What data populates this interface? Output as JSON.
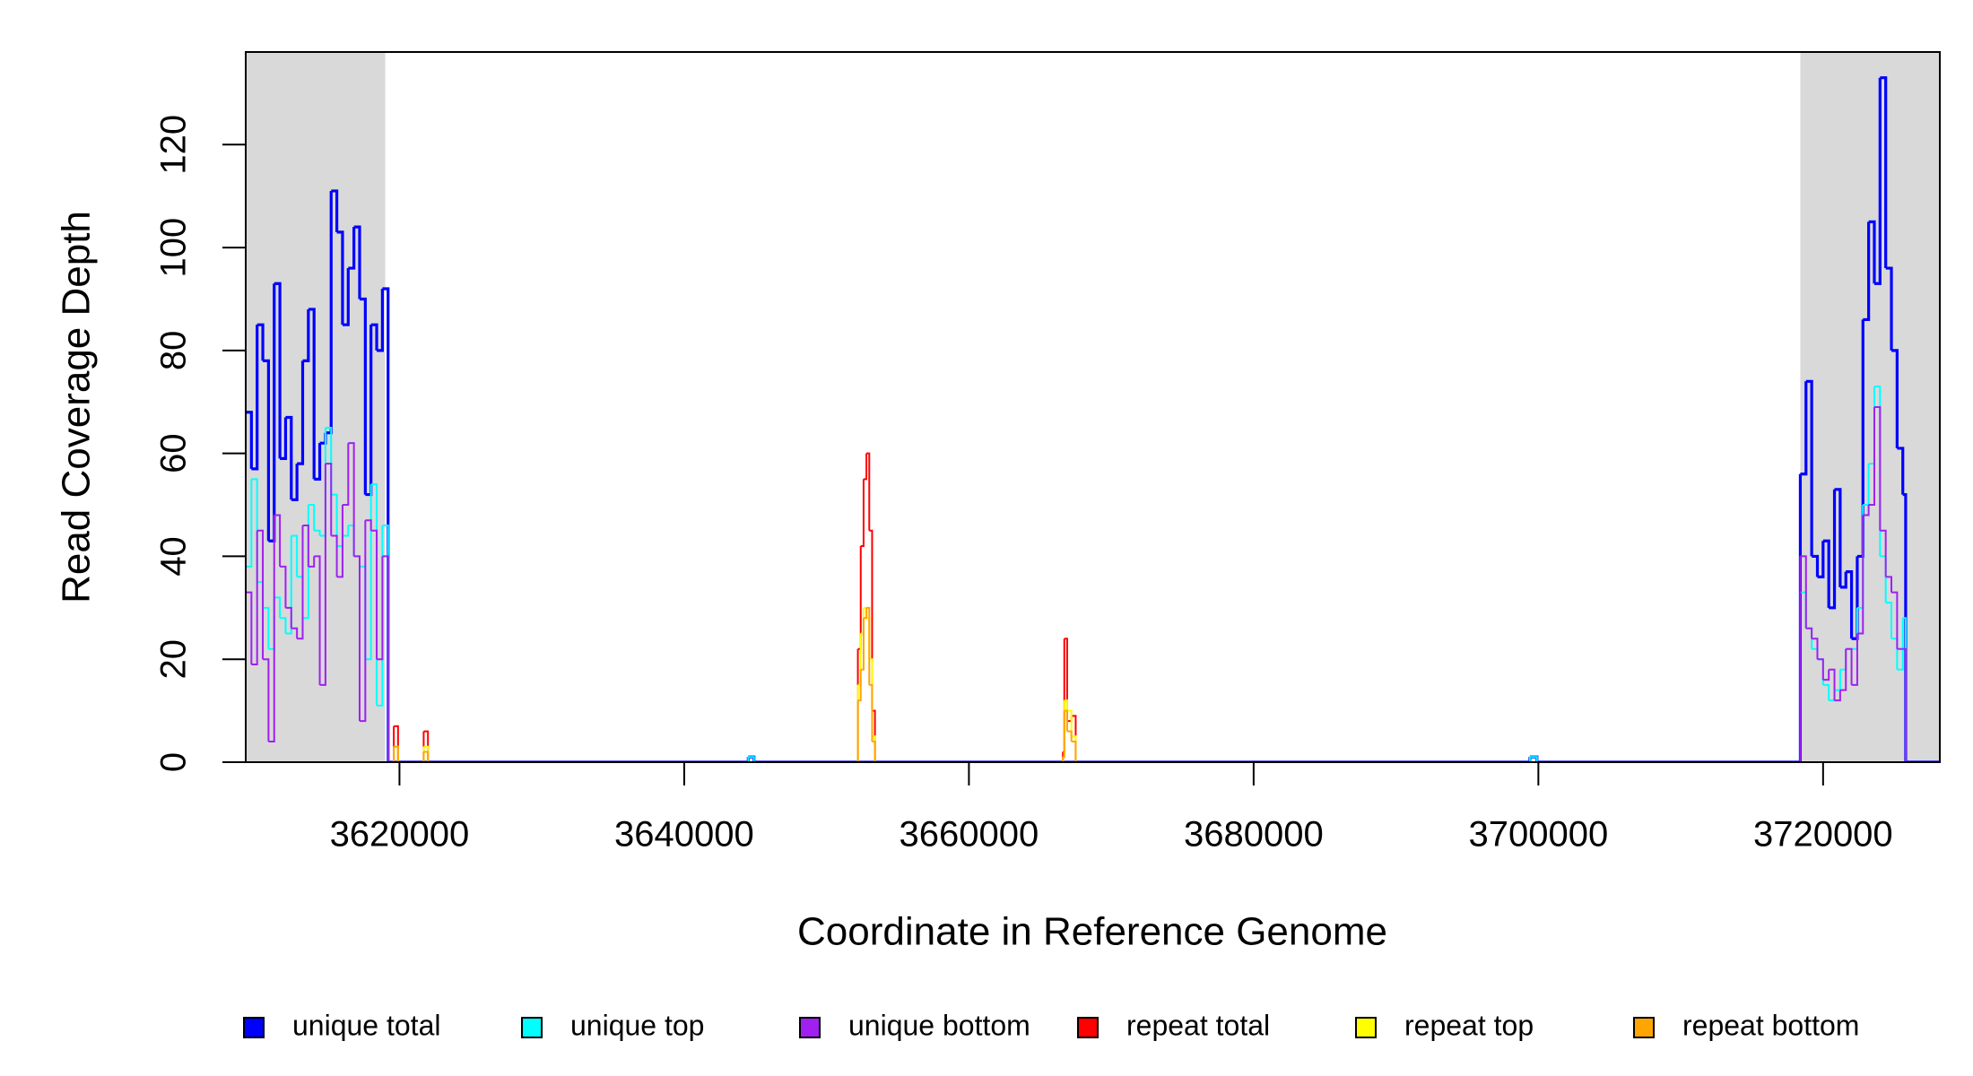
{
  "chart_data": {
    "type": "step",
    "x_label": "Coordinate in Reference Genome",
    "y_label": "Read Coverage Depth",
    "x": [
      3609200,
      3609600,
      3610000,
      3610400,
      3610800,
      3611200,
      3611600,
      3612000,
      3612400,
      3612800,
      3613200,
      3613600,
      3614000,
      3614400,
      3614800,
      3615200,
      3615600,
      3616000,
      3616400,
      3616800,
      3617200,
      3617600,
      3618000,
      3618400,
      3618800,
      3619200,
      3619400,
      3619600,
      3619900,
      3621700,
      3622000,
      3644500,
      3644900,
      3652200,
      3652400,
      3652600,
      3652800,
      3653000,
      3653200,
      3653400,
      3666600,
      3666700,
      3666900,
      3667200,
      3667500,
      3699400,
      3699900,
      3718400,
      3718800,
      3719200,
      3719600,
      3720000,
      3720400,
      3720800,
      3721200,
      3721600,
      3722000,
      3722400,
      3722800,
      3723200,
      3723600,
      3724000,
      3724400,
      3724800,
      3725200,
      3725600,
      3725800,
      3728200
    ],
    "series": [
      {
        "name": "unique total",
        "color": "#0000ff",
        "values": [
          68,
          57,
          85,
          78,
          43,
          93,
          59,
          67,
          51,
          58,
          78,
          88,
          55,
          62,
          64,
          111,
          103,
          85,
          96,
          104,
          90,
          52,
          85,
          80,
          92,
          0,
          0,
          0,
          0,
          0,
          0,
          1,
          0,
          0,
          0,
          0,
          0,
          0,
          0,
          0,
          0,
          0,
          0,
          0,
          0,
          1,
          0,
          56,
          74,
          40,
          36,
          43,
          30,
          53,
          34,
          37,
          24,
          40,
          86,
          105,
          93,
          133,
          96,
          80,
          61,
          52,
          0,
          0
        ]
      },
      {
        "name": "unique top",
        "color": "#00ffff",
        "values": [
          38,
          55,
          35,
          30,
          22,
          32,
          28,
          25,
          44,
          36,
          28,
          50,
          45,
          44,
          65,
          52,
          42,
          44,
          46,
          40,
          38,
          20,
          54,
          11,
          46,
          0,
          0,
          0,
          0,
          0,
          0,
          1,
          0,
          0,
          0,
          0,
          0,
          0,
          0,
          0,
          0,
          0,
          0,
          0,
          0,
          1,
          0,
          33,
          26,
          22,
          20,
          15,
          12,
          14,
          18,
          22,
          22,
          30,
          50,
          58,
          73,
          40,
          31,
          24,
          18,
          28,
          0,
          0
        ]
      },
      {
        "name": "unique bottom",
        "color": "#a020f0",
        "values": [
          33,
          19,
          45,
          20,
          4,
          48,
          38,
          30,
          26,
          24,
          46,
          38,
          40,
          15,
          58,
          44,
          36,
          50,
          62,
          40,
          8,
          47,
          45,
          20,
          40,
          0,
          0,
          0,
          0,
          0,
          0,
          0,
          0,
          0,
          0,
          0,
          0,
          0,
          0,
          0,
          0,
          0,
          0,
          0,
          0,
          0,
          0,
          40,
          26,
          24,
          20,
          16,
          18,
          12,
          14,
          22,
          15,
          25,
          48,
          50,
          69,
          45,
          36,
          33,
          22,
          22,
          0,
          0
        ]
      },
      {
        "name": "repeat total",
        "color": "#ff0000",
        "values": [
          0,
          0,
          0,
          0,
          0,
          0,
          0,
          0,
          0,
          0,
          0,
          0,
          0,
          0,
          0,
          0,
          0,
          0,
          0,
          0,
          0,
          0,
          0,
          0,
          0,
          0,
          0,
          7,
          0,
          6,
          0,
          0,
          0,
          22,
          42,
          55,
          60,
          45,
          10,
          0,
          2,
          24,
          8,
          9,
          0,
          0,
          0,
          0,
          0,
          0,
          0,
          0,
          0,
          0,
          0,
          0,
          0,
          0,
          0,
          0,
          0,
          0,
          0,
          0,
          0,
          0,
          0,
          0
        ]
      },
      {
        "name": "repeat top",
        "color": "#ffff00",
        "values": [
          0,
          0,
          0,
          0,
          0,
          0,
          0,
          0,
          0,
          0,
          0,
          0,
          0,
          0,
          0,
          0,
          0,
          0,
          0,
          0,
          0,
          0,
          0,
          0,
          0,
          0,
          0,
          3,
          0,
          3,
          0,
          0,
          0,
          15,
          25,
          30,
          28,
          20,
          5,
          0,
          1,
          12,
          10,
          5,
          0,
          0,
          0,
          0,
          0,
          0,
          0,
          0,
          0,
          0,
          0,
          0,
          0,
          0,
          0,
          0,
          0,
          0,
          0,
          0,
          0,
          0,
          0,
          0
        ]
      },
      {
        "name": "repeat bottom",
        "color": "#ffa500",
        "values": [
          0,
          0,
          0,
          0,
          0,
          0,
          0,
          0,
          0,
          0,
          0,
          0,
          0,
          0,
          0,
          0,
          0,
          0,
          0,
          0,
          0,
          0,
          0,
          0,
          0,
          0,
          0,
          3,
          0,
          2,
          0,
          0,
          0,
          12,
          18,
          28,
          30,
          15,
          4,
          0,
          1,
          10,
          6,
          4,
          0,
          0,
          0,
          0,
          0,
          0,
          0,
          0,
          0,
          0,
          0,
          0,
          0,
          0,
          0,
          0,
          0,
          0,
          0,
          0,
          0,
          0,
          0,
          0
        ]
      }
    ],
    "xlim": [
      3609200,
      3728200
    ],
    "ylim": [
      0,
      138
    ],
    "xticks": [
      3620000,
      3640000,
      3660000,
      3680000,
      3700000,
      3720000
    ],
    "yticks": [
      0,
      20,
      40,
      60,
      80,
      100,
      120
    ],
    "shaded_regions": [
      [
        3609200,
        3619000
      ],
      [
        3718400,
        3728200
      ]
    ],
    "shade_color": "#d9d9d9",
    "legend": "bottom"
  }
}
